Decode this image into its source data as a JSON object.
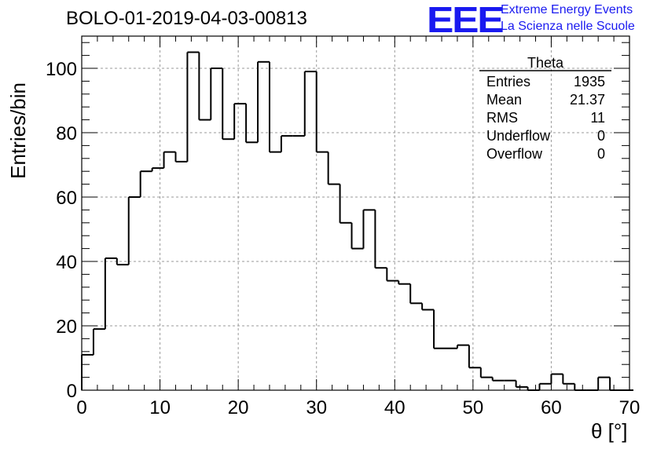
{
  "header": {
    "run_title": "BOLO-01-2019-04-03-00813",
    "logo_mark": "EEE",
    "logo_line1": "Extreme Energy Events",
    "logo_line2": "La Scienza nelle Scuole",
    "logo_color": "#1a1af0"
  },
  "stats_box": {
    "title": "Theta",
    "rows": [
      {
        "label": "Entries",
        "value": "1935"
      },
      {
        "label": "Mean",
        "value": "21.37"
      },
      {
        "label": "RMS",
        "value": "11"
      },
      {
        "label": "Underflow",
        "value": "0"
      },
      {
        "label": "Overflow",
        "value": "0"
      }
    ]
  },
  "chart_data": {
    "type": "bar",
    "histogram": true,
    "xlabel": "θ [°]",
    "ylabel": "Entries/bin",
    "xlim": [
      0,
      70
    ],
    "ylim": [
      0,
      110
    ],
    "xticks": [
      0,
      10,
      20,
      30,
      40,
      50,
      60,
      70
    ],
    "yticks": [
      0,
      20,
      40,
      60,
      80,
      100
    ],
    "grid": true,
    "bin_edges_start": 0,
    "bin_width": 1.5,
    "values": [
      11,
      19,
      41,
      39,
      60,
      68,
      69,
      74,
      71,
      105,
      84,
      100,
      78,
      89,
      77,
      102,
      74,
      79,
      79,
      99,
      74,
      64,
      52,
      44,
      56,
      38,
      34,
      33,
      27,
      25,
      13,
      13,
      14,
      7,
      4,
      3,
      3,
      1,
      0,
      2,
      5,
      2,
      0,
      0,
      4,
      0,
      0
    ],
    "line_color": "#000000"
  }
}
